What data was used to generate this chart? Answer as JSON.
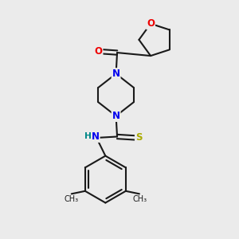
{
  "bg_color": "#ebebeb",
  "bond_color": "#1a1a1a",
  "N_color": "#0000ee",
  "O_color": "#ee0000",
  "S_color": "#aaaa00",
  "H_color": "#008888",
  "line_width": 1.5,
  "font_size": 8.5,
  "xlim": [
    0,
    10
  ],
  "ylim": [
    0,
    10
  ]
}
